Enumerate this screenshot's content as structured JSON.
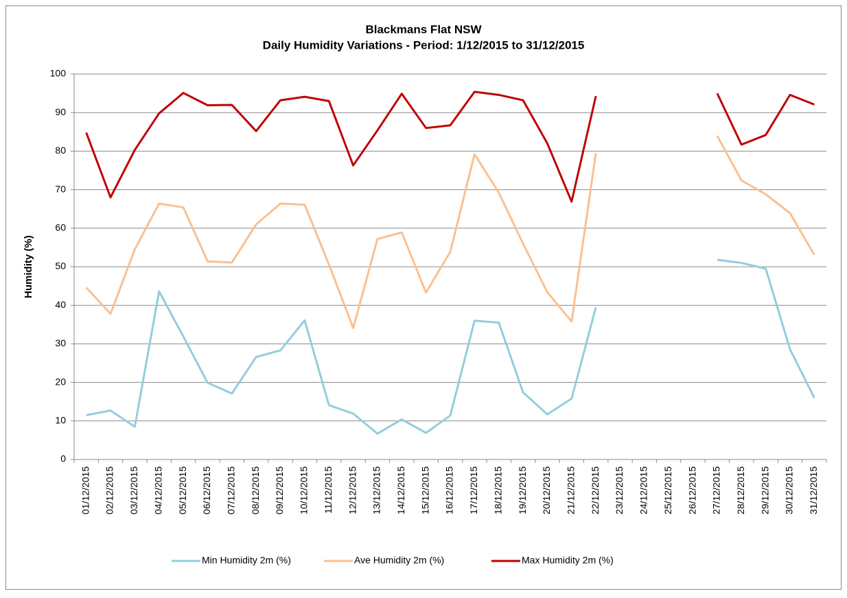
{
  "chart_data": {
    "type": "line",
    "title": "Blackmans Flat NSW",
    "subtitle": "Daily Humidity Variations - Period: 1/12/2015 to 31/12/2015",
    "y_label": "Humidity (%)",
    "categories": [
      "01/12/2015",
      "02/12/2015",
      "03/12/2015",
      "04/12/2015",
      "05/12/2015",
      "06/12/2015",
      "07/12/2015",
      "08/12/2015",
      "09/12/2015",
      "10/12/2015",
      "11/12/2015",
      "12/12/2015",
      "13/12/2015",
      "14/12/2015",
      "15/12/2015",
      "16/12/2015",
      "17/12/2015",
      "18/12/2015",
      "19/12/2015",
      "20/12/2015",
      "21/12/2015",
      "22/12/2015",
      "23/12/2015",
      "24/12/2015",
      "25/12/2015",
      "26/12/2015",
      "27/12/2015",
      "28/12/2015",
      "29/12/2015",
      "30/12/2015",
      "31/12/2015"
    ],
    "series": [
      {
        "name": "Min Humidity 2m (%)",
        "color": "#93cddd",
        "values": [
          11.5,
          12.7,
          8.5,
          43.6,
          31.9,
          19.9,
          17.1,
          26.6,
          28.3,
          36.1,
          14.1,
          11.9,
          6.7,
          10.4,
          6.9,
          11.4,
          36,
          35.5,
          17.4,
          11.7,
          15.8,
          39.5,
          null,
          null,
          null,
          null,
          51.8,
          51,
          49.5,
          28.6,
          16
        ]
      },
      {
        "name": "Ave Humidity 2m (%)",
        "color": "#fac090",
        "values": [
          44.6,
          37.8,
          54.5,
          66.4,
          65.4,
          51.4,
          51.1,
          61,
          66.4,
          66.1,
          50.6,
          34.1,
          57.2,
          58.9,
          43.3,
          53.9,
          79.2,
          69.2,
          56,
          43.4,
          35.8,
          79.5,
          null,
          null,
          null,
          null,
          84,
          72.4,
          68.8,
          63.9,
          53.1
        ]
      },
      {
        "name": "Max Humidity 2m (%)",
        "color": "#c00000",
        "values": [
          84.8,
          68,
          80.3,
          89.8,
          95.1,
          91.9,
          92,
          85.2,
          93.2,
          94.1,
          93,
          76.3,
          85.4,
          94.9,
          86,
          86.7,
          95.4,
          94.6,
          93.2,
          82,
          66.9,
          94.3,
          null,
          null,
          null,
          null,
          95,
          81.7,
          84.2,
          94.6,
          92.1
        ]
      }
    ],
    "ylim": [
      0,
      100
    ],
    "yticks": [
      0,
      10,
      20,
      30,
      40,
      50,
      60,
      70,
      80,
      90,
      100
    ],
    "grid": true,
    "legend": "bottom"
  }
}
